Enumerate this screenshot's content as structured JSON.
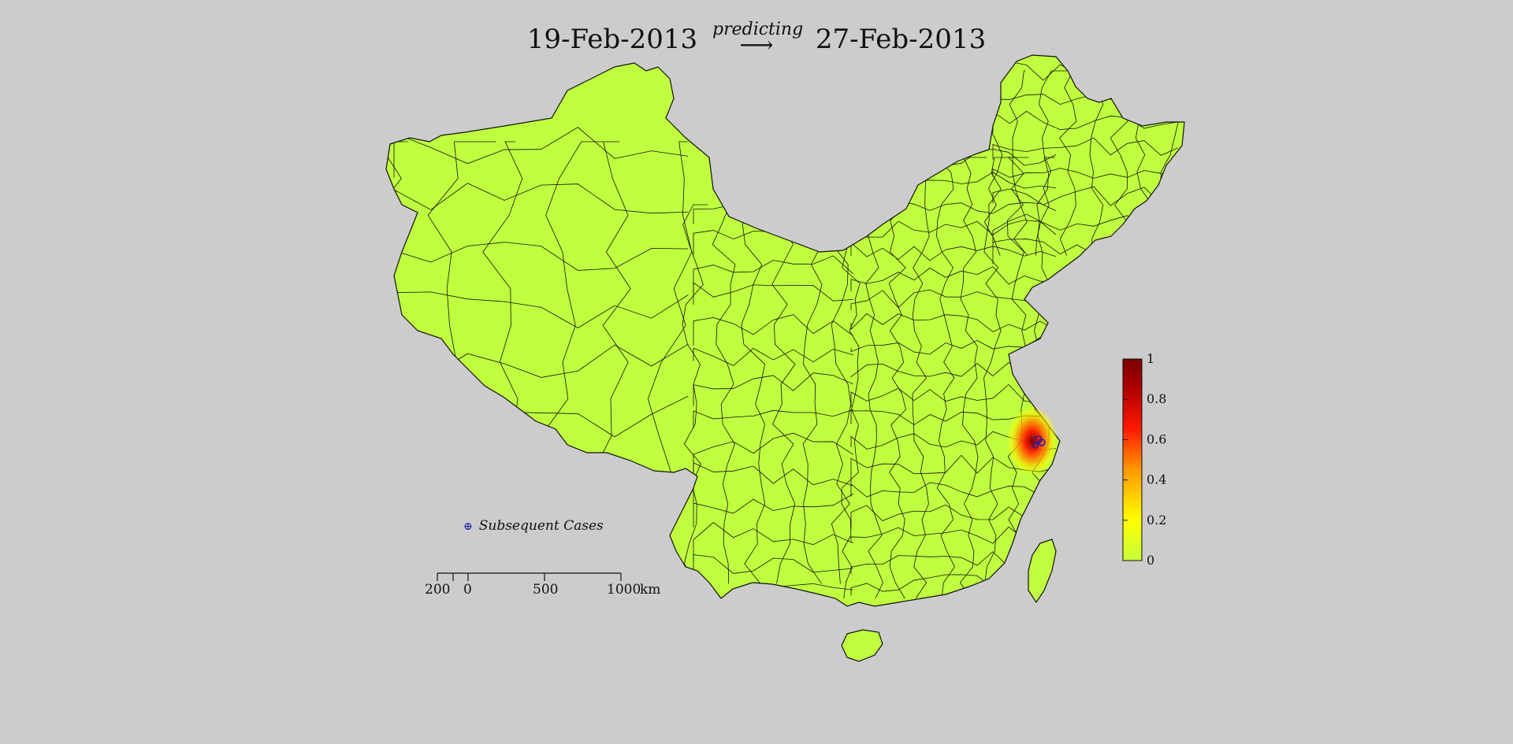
{
  "title": {
    "start_date": "19-Feb-2013",
    "arrow_label": "predicting",
    "end_date": "27-Feb-2013"
  },
  "legend": {
    "marker_label": "Subsequent Cases",
    "marker_color": "#1a1aa0"
  },
  "colorbar": {
    "min": 0,
    "max": 1,
    "ticks": [
      "0",
      "0.2",
      "0.4",
      "0.6",
      "0.8",
      "1"
    ],
    "colors": [
      "#c6ff3a",
      "#ffff00",
      "#ff9900",
      "#ff1a00",
      "#b20000",
      "#7a0000"
    ]
  },
  "scale_bar": {
    "labels": [
      "200",
      "0",
      "500",
      "1000",
      "km"
    ]
  },
  "map_colors": {
    "land": "#bfff3f",
    "background": "#cccccc",
    "border": "#111111",
    "hotspot_center": "#8b0000"
  }
}
